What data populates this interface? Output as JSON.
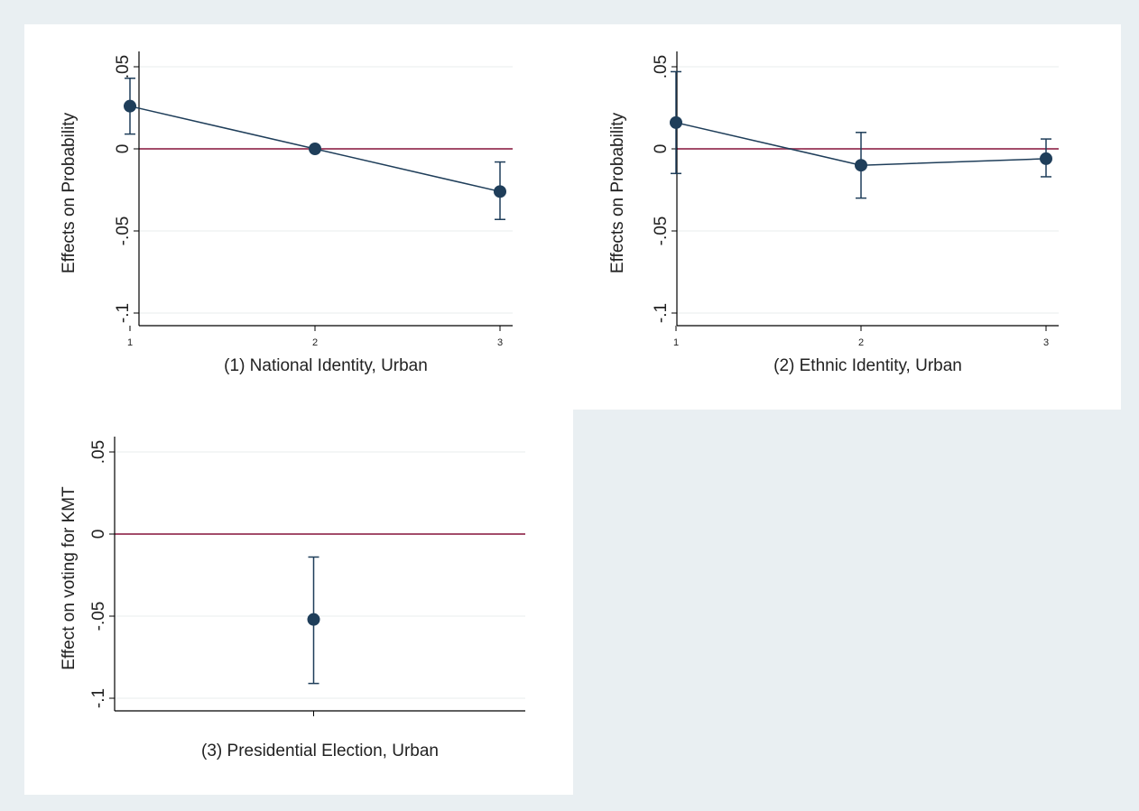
{
  "colors": {
    "series": "#1f3e5a",
    "ref_line": "#a34d6a",
    "page_bg": "#e9eff2"
  },
  "chart_data": [
    {
      "type": "scatter",
      "xlabel": "(1) National Identity, Urban",
      "ylabel": "Effects on Probability",
      "ylim": [
        -0.1,
        0.05
      ],
      "yticks": [
        0.05,
        0,
        -0.05,
        -0.1
      ],
      "ytick_labels": [
        ".05",
        "0",
        "-.05",
        "-.1"
      ],
      "xticks": [
        1,
        2,
        3
      ],
      "xtick_labels": [
        "1",
        "2",
        "3"
      ],
      "xlim": [
        1,
        3
      ],
      "connected": true,
      "ref_line": 0,
      "series": [
        {
          "x": [
            1,
            2,
            3
          ],
          "y": [
            0.026,
            0.0,
            -0.026
          ],
          "ci_low": [
            0.009,
            0.0,
            -0.043
          ],
          "ci_high": [
            0.043,
            0.0,
            -0.008
          ]
        }
      ]
    },
    {
      "type": "scatter",
      "xlabel": "(2) Ethnic Identity, Urban",
      "ylabel": "Effects on Probability",
      "ylim": [
        -0.1,
        0.05
      ],
      "yticks": [
        0.05,
        0,
        -0.05,
        -0.1
      ],
      "ytick_labels": [
        ".05",
        "0",
        "-.05",
        "-.1"
      ],
      "xticks": [
        1,
        2,
        3
      ],
      "xtick_labels": [
        "1",
        "2",
        "3"
      ],
      "xlim": [
        1,
        3
      ],
      "connected": true,
      "ref_line": 0,
      "series": [
        {
          "x": [
            1,
            2,
            3
          ],
          "y": [
            0.016,
            -0.01,
            -0.006
          ],
          "ci_low": [
            -0.015,
            -0.03,
            -0.017
          ],
          "ci_high": [
            0.047,
            0.01,
            0.006
          ]
        }
      ]
    },
    {
      "type": "scatter",
      "xlabel": "(3) Presidential Election, Urban",
      "ylabel": "Effect on voting for KMT",
      "ylim": [
        -0.1,
        0.05
      ],
      "yticks": [
        0.05,
        0,
        -0.05,
        -0.1
      ],
      "ytick_labels": [
        ".05",
        "0",
        "-.05",
        "-.1"
      ],
      "xticks": [
        1
      ],
      "xtick_labels": [],
      "xlim": [
        0,
        2
      ],
      "connected": false,
      "ref_line": 0,
      "series": [
        {
          "x": [
            1
          ],
          "y": [
            -0.052
          ],
          "ci_low": [
            -0.091
          ],
          "ci_high": [
            -0.014
          ]
        }
      ]
    }
  ]
}
